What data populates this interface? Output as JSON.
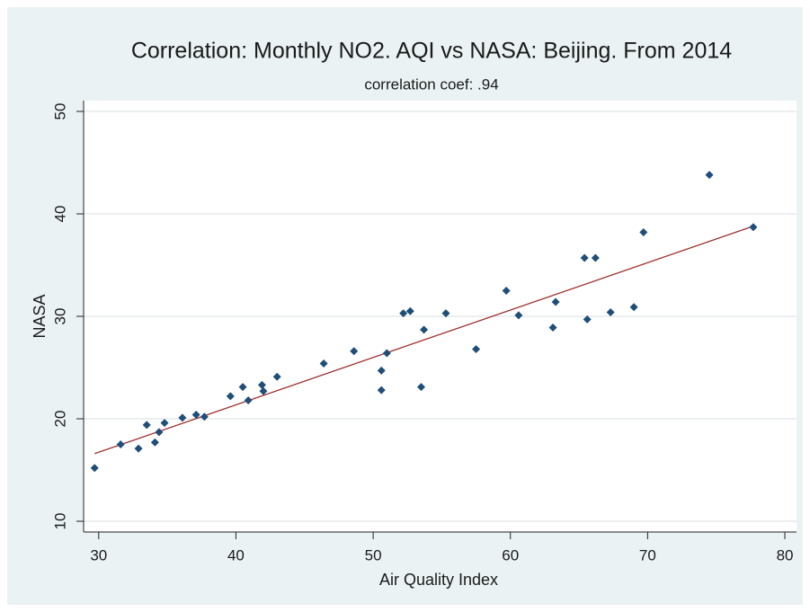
{
  "chart_data": {
    "type": "scatter",
    "title": "Correlation: Monthly NO2. AQI vs NASA: Beijing. From 2014",
    "subtitle": "correlation coef:  .94",
    "x_label": "Air Quality Index",
    "y_label": "NASA",
    "xlim": [
      28.9,
      80.85
    ],
    "ylim": [
      8.95,
      51.05
    ],
    "xticks": [
      30,
      40,
      50,
      60,
      70,
      80
    ],
    "yticks": [
      10,
      20,
      30,
      40,
      50
    ],
    "grid": true,
    "color": "#1f4e79",
    "x": [
      29.7,
      31.6,
      32.9,
      33.5,
      34.1,
      34.4,
      34.8,
      36.1,
      37.1,
      37.7,
      39.6,
      40.5,
      40.9,
      41.9,
      42.0,
      43.0,
      46.4,
      48.6,
      50.6,
      50.6,
      51.0,
      52.2,
      52.7,
      53.5,
      53.7,
      55.3,
      57.5,
      59.7,
      60.6,
      63.1,
      63.3,
      65.4,
      65.6,
      66.2,
      67.3,
      69.0,
      69.7,
      74.5,
      77.7
    ],
    "values": [
      15.2,
      17.5,
      17.1,
      19.4,
      17.7,
      18.7,
      19.6,
      20.1,
      20.4,
      20.2,
      22.2,
      23.1,
      21.8,
      23.3,
      22.7,
      24.1,
      25.4,
      26.6,
      24.7,
      22.8,
      26.4,
      30.3,
      30.5,
      23.1,
      28.7,
      30.3,
      26.8,
      32.5,
      30.1,
      28.9,
      31.4,
      35.7,
      29.7,
      35.7,
      30.4,
      30.9,
      38.2,
      43.8,
      38.7
    ],
    "fit_line": {
      "x": [
        29.7,
        77.7
      ],
      "values": [
        16.6,
        38.8
      ],
      "color": "#a03030"
    }
  }
}
